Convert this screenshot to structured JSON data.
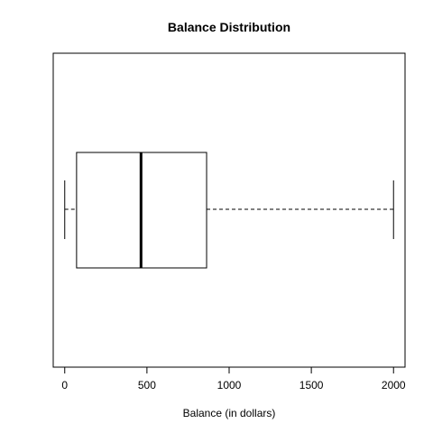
{
  "chart_data": {
    "type": "boxplot",
    "orientation": "horizontal",
    "title": "Balance Distribution",
    "xlabel": "Balance (in dollars)",
    "ylabel": "",
    "xlim": [
      -70,
      2070
    ],
    "xticks": [
      0,
      500,
      1000,
      1500,
      2000
    ],
    "xtick_labels": [
      "0",
      "500",
      "1000",
      "1500",
      "2000"
    ],
    "grid": false,
    "stats": {
      "min": 0,
      "q1": 72,
      "median": 464,
      "q3": 863,
      "max": 2000
    },
    "colors": {
      "stroke": "#000000",
      "box_fill": "#ffffff",
      "background": "#ffffff"
    }
  }
}
